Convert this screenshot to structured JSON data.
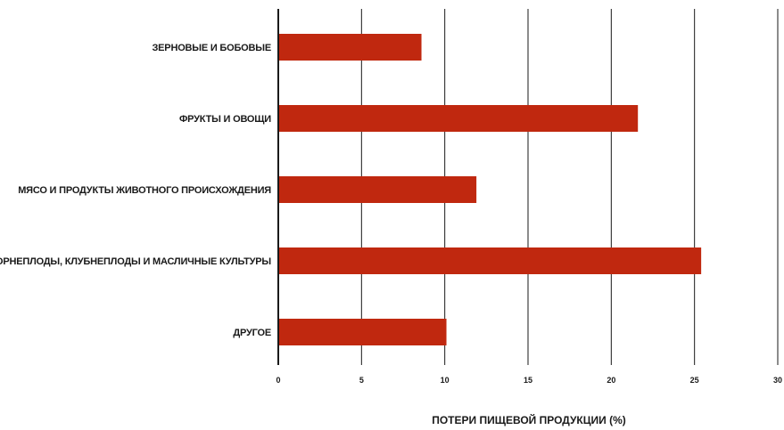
{
  "chart_data": {
    "type": "bar",
    "orientation": "horizontal",
    "categories": [
      "ЗЕРНОВЫЕ И БОБОВЫЕ",
      "ФРУКТЫ И ОВОЩИ",
      "МЯСО И ПРОДУКТЫ ЖИВОТНОГО ПРОИСХОЖДЕНИЯ",
      "КОРНЕПЛОДЫ, КЛУБНЕПЛОДЫ И МАСЛИЧНЫЕ КУЛЬТУРЫ",
      "ДРУГОЕ"
    ],
    "values": [
      8.6,
      21.6,
      11.9,
      25.4,
      10.1
    ],
    "title": "",
    "xlabel": "ПОТЕРИ ПИЩЕВОЙ ПРОДУКЦИИ (%)",
    "ylabel": "",
    "xlim": [
      0,
      30
    ],
    "xticks": [
      "0",
      "5",
      "10",
      "15",
      "20",
      "25",
      "30"
    ],
    "grid": "vertical",
    "legend": "none",
    "bar_color": "#c0280f",
    "grid_color": "#1a1a1a"
  }
}
